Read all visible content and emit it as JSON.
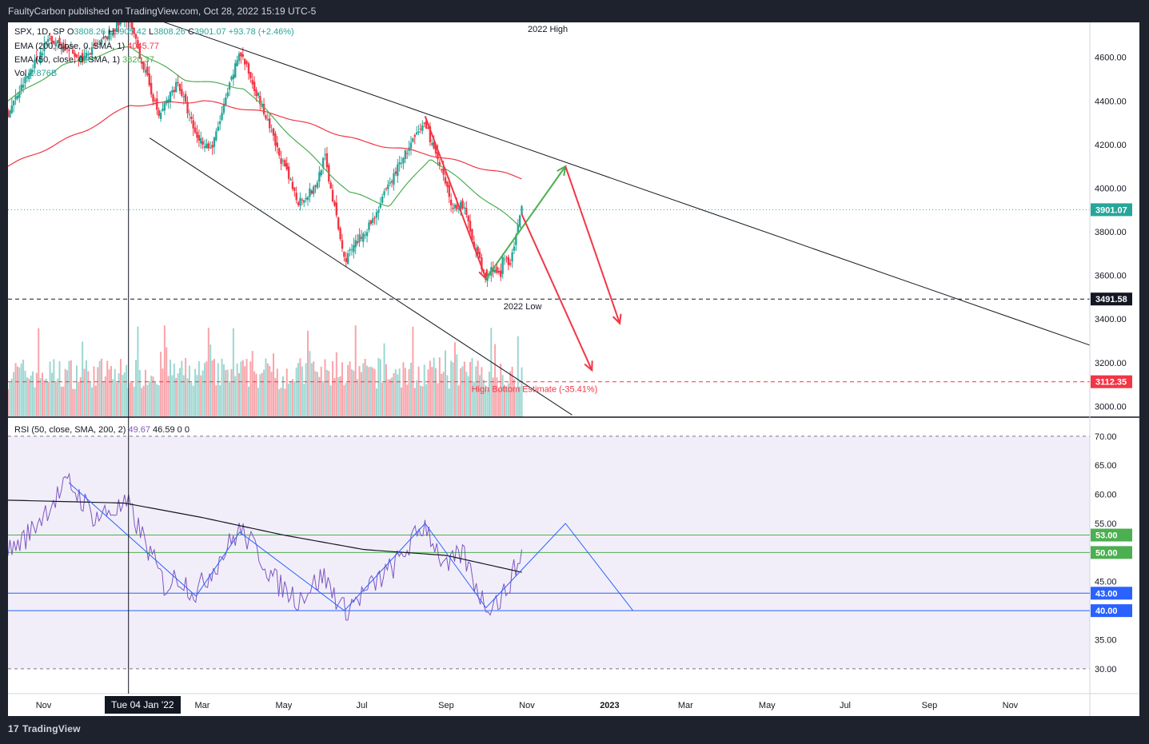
{
  "header": {
    "publisher": "FaultyCarbon published on TradingView.com, Oct 28, 2022 15:19 UTC-5"
  },
  "legend": {
    "price_line": {
      "prefix": "SPX, 1D, SP",
      "o_label": "O",
      "o": "3808.26",
      "h_label": "H",
      "h": "3905.42",
      "l_label": "L",
      "l": "3808.26",
      "c_label": "C",
      "c": "3901.07",
      "change": "+93.78 (+2.46%)"
    },
    "ema200": {
      "label": "EMA (200, close, 0, SMA, 1)",
      "value": "4045.77"
    },
    "ema50": {
      "label": "EMA (50, close, 0, SMA, 1)",
      "value": "3820.37"
    },
    "vol": {
      "label": "Vol",
      "value": "2.876B"
    },
    "rsi": {
      "label": "RSI (50, close, SMA, 200, 2)",
      "value1": "49.67",
      "value2": "46.59",
      "zero1": "0",
      "zero2": "0"
    }
  },
  "crosshair": {
    "date_label": "Tue 04 Jan '22"
  },
  "footer": {
    "brand": "TradingView",
    "brand_mark": "17"
  },
  "colors": {
    "up": "#26a69a",
    "down": "#f23645",
    "ema200": "#f23645",
    "ema50": "#4caf50",
    "rsi": "#7e57c2",
    "green_arrow": "#4caf50",
    "red_arrow": "#f23645",
    "fib_blue": "#2962ff",
    "text": "#131722"
  },
  "chart_data": [
    {
      "type": "candlestick",
      "title": "SPX, 1D, SP",
      "x_axis_ticks": [
        "Nov",
        "Mar",
        "May",
        "Jul",
        "Sep",
        "Nov",
        "2023",
        "Mar",
        "May",
        "Jul",
        "Sep",
        "Nov"
      ],
      "y_ticks": [
        4600,
        4400,
        4200,
        4000,
        3800,
        3600,
        3400,
        3200,
        3000
      ],
      "y_tick_labels": [
        "4600.00",
        "4400.00",
        "4200.00",
        "4000.00",
        "3800.00",
        "3600.00",
        "3400.00",
        "3200.00",
        "3000.00"
      ],
      "ylim": [
        2950,
        4760
      ],
      "price_markers": [
        {
          "label": "3901.07",
          "value": 3901.07,
          "color": "#26a69a"
        },
        {
          "label": "3491.58",
          "value": 3491.58,
          "color": "#131722"
        },
        {
          "label": "3112.35",
          "value": 3112.35,
          "color": "#f23645"
        }
      ],
      "annotations": [
        {
          "text": "2022 High",
          "date": "2022-01-04",
          "value": 4818
        },
        {
          "text": "2022 Low",
          "date": "2022-10-13",
          "value": 3491.58
        },
        {
          "text": "High Bottom Estimate (-35.41%)",
          "date": "2022-09-20",
          "value": 3112.35
        }
      ],
      "price_path": [
        [
          "2021-10-05",
          4345
        ],
        [
          "2021-10-20",
          4520
        ],
        [
          "2021-11-05",
          4690
        ],
        [
          "2021-11-30",
          4590
        ],
        [
          "2021-12-15",
          4670
        ],
        [
          "2022-01-03",
          4790
        ],
        [
          "2022-01-10",
          4660
        ],
        [
          "2022-01-27",
          4330
        ],
        [
          "2022-02-10",
          4490
        ],
        [
          "2022-02-24",
          4240
        ],
        [
          "2022-03-08",
          4180
        ],
        [
          "2022-03-29",
          4630
        ],
        [
          "2022-04-12",
          4420
        ],
        [
          "2022-04-26",
          4180
        ],
        [
          "2022-05-12",
          3940
        ],
        [
          "2022-05-25",
          4000
        ],
        [
          "2022-06-01",
          4150
        ],
        [
          "2022-06-16",
          3670
        ],
        [
          "2022-07-07",
          3850
        ],
        [
          "2022-07-29",
          4130
        ],
        [
          "2022-08-16",
          4300
        ],
        [
          "2022-09-06",
          3910
        ],
        [
          "2022-09-13",
          3930
        ],
        [
          "2022-09-30",
          3585
        ],
        [
          "2022-10-07",
          3640
        ],
        [
          "2022-10-12",
          3580
        ],
        [
          "2022-10-13",
          3670
        ],
        [
          "2022-10-20",
          3665
        ],
        [
          "2022-10-28",
          3901
        ]
      ],
      "ema200_path": [
        [
          "2021-10-05",
          4100
        ],
        [
          "2021-12-01",
          4260
        ],
        [
          "2022-01-05",
          4380
        ],
        [
          "2022-03-01",
          4400
        ],
        [
          "2022-05-01",
          4330
        ],
        [
          "2022-07-01",
          4210
        ],
        [
          "2022-08-16",
          4160
        ],
        [
          "2022-10-28",
          4046
        ]
      ],
      "ema50_path": [
        [
          "2021-10-05",
          4400
        ],
        [
          "2021-11-15",
          4560
        ],
        [
          "2022-01-05",
          4650
        ],
        [
          "2022-02-15",
          4500
        ],
        [
          "2022-04-01",
          4460
        ],
        [
          "2022-05-15",
          4190
        ],
        [
          "2022-06-20",
          3980
        ],
        [
          "2022-07-20",
          3920
        ],
        [
          "2022-08-20",
          4140
        ],
        [
          "2022-09-30",
          3950
        ],
        [
          "2022-10-28",
          3820
        ]
      ],
      "trendlines": [
        {
          "name": "upper-channel",
          "points": [
            [
              "2022-01-04",
              4818
            ],
            [
              "2023-12-31",
              3280
            ]
          ]
        },
        {
          "name": "lower-channel",
          "points": [
            [
              "2022-01-20",
              4230
            ],
            [
              "2022-12-05",
              2960
            ]
          ]
        }
      ],
      "arrows": [
        {
          "color": "red",
          "points": [
            [
              "2022-08-16",
              4330
            ],
            [
              "2022-10-01",
              3585
            ]
          ]
        },
        {
          "color": "green",
          "points": [
            [
              "2022-10-01",
              3585
            ],
            [
              "2022-11-30",
              4100
            ]
          ]
        },
        {
          "color": "red",
          "points": [
            [
              "2022-10-28",
              3880
            ],
            [
              "2022-12-20",
              3165
            ]
          ]
        },
        {
          "color": "red",
          "points": [
            [
              "2022-11-30",
              4100
            ],
            [
              "2023-01-10",
              3380
            ]
          ]
        }
      ],
      "volume_bars": 270
    },
    {
      "type": "line",
      "title": "RSI (50, close, SMA, 200, 2)",
      "y_ticks": [
        70,
        65,
        60,
        55,
        50,
        45,
        40,
        35,
        30
      ],
      "y_tick_labels": [
        "70.00",
        "65.00",
        "60.00",
        "55.00",
        "50.00",
        "45.00",
        "40.00",
        "35.00",
        "30.00"
      ],
      "ylim": [
        26,
        73
      ],
      "levels": [
        {
          "label": "53.00",
          "value": 53,
          "color": "#4caf50"
        },
        {
          "label": "50.00",
          "value": 50,
          "color": "#4caf50"
        },
        {
          "label": "43.00",
          "value": 43,
          "color": "#2962ff"
        },
        {
          "label": "40.00",
          "value": 40,
          "color": "#2962ff"
        }
      ],
      "band": [
        30,
        70
      ],
      "rsi_path": [
        [
          "2021-10-05",
          50
        ],
        [
          "2021-10-20",
          53
        ],
        [
          "2021-11-05",
          58
        ],
        [
          "2021-11-20",
          62
        ],
        [
          "2021-12-10",
          56
        ],
        [
          "2021-12-20",
          57
        ],
        [
          "2022-01-04",
          58
        ],
        [
          "2022-01-20",
          50
        ],
        [
          "2022-02-01",
          44
        ],
        [
          "2022-02-10",
          46
        ],
        [
          "2022-02-24",
          43
        ],
        [
          "2022-03-29",
          54
        ],
        [
          "2022-04-12",
          50
        ],
        [
          "2022-04-25",
          45
        ],
        [
          "2022-05-12",
          42
        ],
        [
          "2022-05-31",
          46
        ],
        [
          "2022-06-16",
          40
        ],
        [
          "2022-07-01",
          43
        ],
        [
          "2022-07-25",
          48
        ],
        [
          "2022-08-16",
          55
        ],
        [
          "2022-09-01",
          47
        ],
        [
          "2022-09-13",
          50
        ],
        [
          "2022-09-30",
          41
        ],
        [
          "2022-10-13",
          42
        ],
        [
          "2022-10-28",
          49.7
        ]
      ],
      "rsi_sma_path": [
        [
          "2021-10-05",
          59
        ],
        [
          "2022-01-01",
          58.5
        ],
        [
          "2022-03-01",
          56
        ],
        [
          "2022-05-01",
          53
        ],
        [
          "2022-07-01",
          50.5
        ],
        [
          "2022-09-01",
          49.5
        ],
        [
          "2022-10-28",
          46.6
        ]
      ],
      "zigzag": [
        [
          "2021-11-20",
          62
        ],
        [
          "2022-02-24",
          42.5
        ],
        [
          "2022-03-29",
          53.5
        ],
        [
          "2022-06-16",
          40
        ],
        [
          "2022-08-16",
          55
        ],
        [
          "2022-10-01",
          40.5
        ],
        [
          "2022-11-30",
          55
        ],
        [
          "2023-01-20",
          40
        ]
      ]
    }
  ]
}
